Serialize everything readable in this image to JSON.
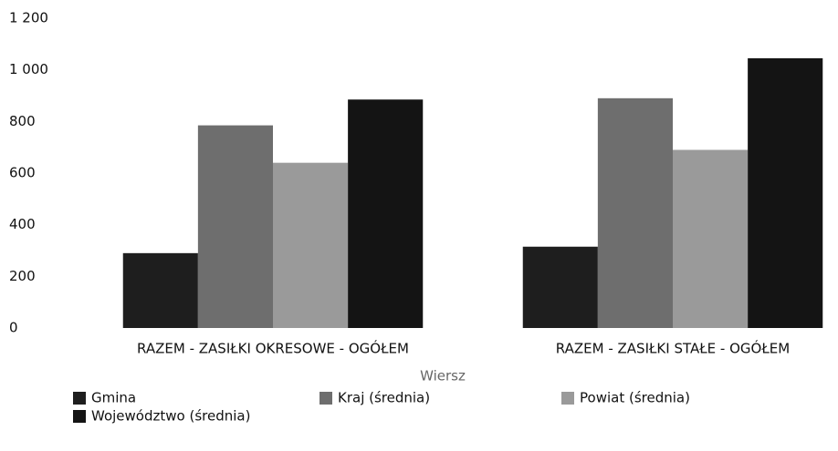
{
  "chart_data": {
    "type": "bar",
    "categories": [
      "RAZEM -  ZASIŁKI OKRESOWE - OGÓŁEM",
      "RAZEM -  ZASIŁKI STAŁE - OGÓŁEM"
    ],
    "series": [
      {
        "name": "Gmina",
        "color": "#1e1e1e",
        "values": [
          290,
          315
        ]
      },
      {
        "name": "Kraj (średnia)",
        "color": "#6e6e6e",
        "values": [
          785,
          890
        ]
      },
      {
        "name": "Powiat (średnia)",
        "color": "#9a9a9a",
        "values": [
          640,
          690
        ]
      },
      {
        "name": "Województwo (średnia)",
        "color": "#141414",
        "values": [
          885,
          1045
        ]
      }
    ],
    "xlabel": "Wiersz",
    "ylim": [
      0,
      1200
    ],
    "yticks": [
      0,
      200,
      400,
      600,
      800,
      {
        "value": 1000,
        "label": "1 000"
      },
      {
        "value": 1200,
        "label": "1 200"
      }
    ],
    "grid": false,
    "legend": "bottom"
  }
}
